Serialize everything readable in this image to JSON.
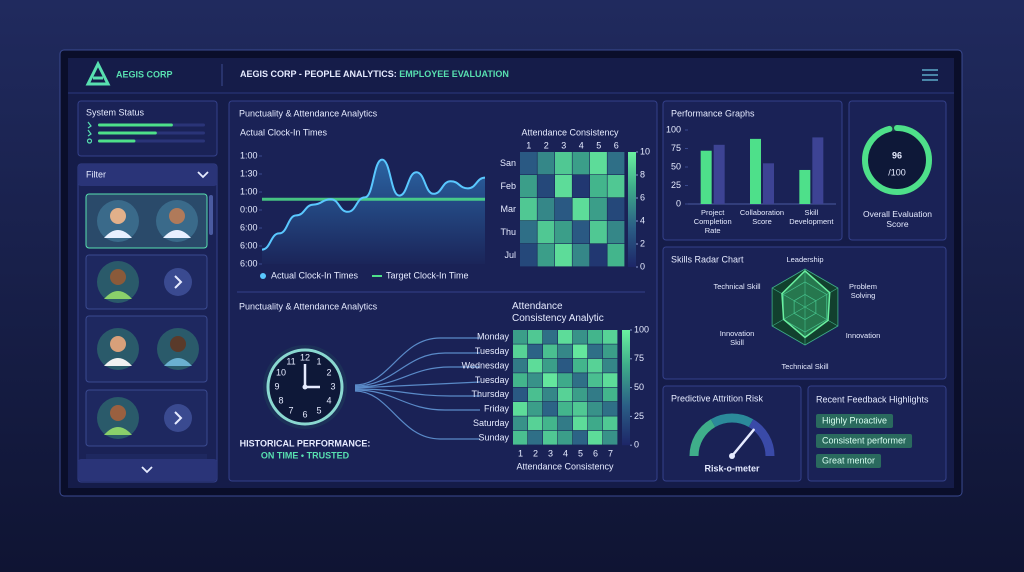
{
  "header": {
    "logo": "AEGIS CORP",
    "title": "AEGIS CORP - PEOPLE ANALYTICS: ",
    "title_highlight": "EMPLOYEE EVALUATION"
  },
  "system_status": {
    "title": "System Status",
    "values": [
      70,
      55,
      35
    ],
    "range": [
      0,
      100
    ]
  },
  "filter": {
    "title": "Filter"
  },
  "clock_in": {
    "type": "line",
    "title": "Punctuality & Attendance Analytics",
    "subtitle": "Actual Clock-In Times",
    "values": [
      0.8,
      1.7,
      2.7,
      3.3,
      3.6,
      2.9,
      3.7,
      5.8,
      3.8,
      5.1,
      3.9,
      4.6,
      4.2,
      4.8
    ],
    "target": 3.6,
    "ylim": [
      0,
      6
    ],
    "yticks": [
      {
        "value": 6,
        "label": "1:00"
      },
      {
        "value": 5,
        "label": "1:30"
      },
      {
        "value": 4,
        "label": "1:00"
      },
      {
        "value": 3,
        "label": "0:00"
      },
      {
        "value": 2,
        "label": "6:00"
      },
      {
        "value": 1,
        "label": "6:00"
      },
      {
        "value": 0,
        "label": "6:00"
      }
    ],
    "legend": [
      "Actual Clock-In Times",
      "Target Clock-In Time"
    ]
  },
  "consistency": {
    "type": "heatmap",
    "title": "Attendance Consistency",
    "columns": [
      1,
      2,
      3,
      4,
      5,
      6
    ],
    "rows": [
      "San",
      "Feb",
      "Mar",
      "Thu",
      "Jul"
    ],
    "values": [
      [
        3,
        5,
        8,
        6,
        9,
        4
      ],
      [
        6,
        2,
        9,
        1,
        7,
        8
      ],
      [
        8,
        5,
        3,
        9,
        6,
        2
      ],
      [
        4,
        8,
        6,
        3,
        8,
        5
      ],
      [
        2,
        6,
        9,
        5,
        1,
        7
      ]
    ],
    "clim": [
      0,
      10
    ],
    "colorbar": [
      0,
      2,
      4,
      6,
      8,
      10
    ]
  },
  "historical": {
    "title": "Punctuality & Attendance Analytics",
    "label": "HISTORICAL PERFORMANCE:",
    "status": "ON TIME • TRUSTED"
  },
  "weekly": {
    "type": "heatmap",
    "title": "Attendance Consistency Analytic",
    "xlabel": "Attendance Consistency",
    "columns": [
      1,
      2,
      3,
      4,
      5,
      6,
      7
    ],
    "rows": [
      "Monday",
      "Tuesday",
      "Wednesday",
      "Tuesday",
      "Thursday",
      "Friday",
      "Saturday",
      "Sunday"
    ],
    "values": [
      [
        60,
        80,
        40,
        90,
        55,
        70,
        85
      ],
      [
        85,
        35,
        75,
        50,
        95,
        40,
        60
      ],
      [
        45,
        90,
        60,
        30,
        70,
        85,
        50
      ],
      [
        70,
        55,
        95,
        65,
        40,
        75,
        90
      ],
      [
        30,
        75,
        50,
        85,
        60,
        45,
        70
      ],
      [
        90,
        60,
        35,
        70,
        80,
        55,
        40
      ],
      [
        55,
        85,
        70,
        45,
        90,
        65,
        80
      ],
      [
        75,
        40,
        80,
        60,
        35,
        90,
        55
      ]
    ],
    "clim": [
      0,
      100
    ],
    "colorbar": [
      0,
      25,
      50,
      75,
      100
    ]
  },
  "performance": {
    "type": "bar",
    "title": "Performance Graphs",
    "categories": [
      "Project Completion Rate",
      "Collaboration Score",
      "Skill Development"
    ],
    "series": [
      {
        "color": "#4ee08a",
        "values": [
          72,
          88,
          46
        ]
      },
      {
        "color": "#3d4394",
        "values": [
          80,
          55,
          90
        ]
      }
    ],
    "ylim": [
      0,
      100
    ],
    "yticks": [
      0,
      25,
      50,
      75,
      100
    ]
  },
  "score": {
    "value": 96,
    "suffix": "/100",
    "label": "Overall Evaluation Score",
    "range": [
      0,
      100
    ]
  },
  "radar": {
    "type": "radar",
    "title": "Skills Radar Chart",
    "axes": [
      "Leadership",
      "Problem Solving",
      "Innovation",
      "Technical Skill",
      "Innovation Skill",
      "Technical Skill"
    ],
    "values": [
      0.95,
      0.75,
      0.7,
      0.8,
      0.65,
      0.7
    ],
    "rlim": [
      0,
      1
    ]
  },
  "attrition": {
    "title": "Predictive Attrition Risk",
    "label": "Risk-o-meter",
    "value": 72,
    "range": [
      0,
      100
    ]
  },
  "feedback": {
    "title": "Recent Feedback Highlights",
    "items": [
      "Highly Proactive",
      "Consistent performer",
      "Great mentor"
    ]
  }
}
